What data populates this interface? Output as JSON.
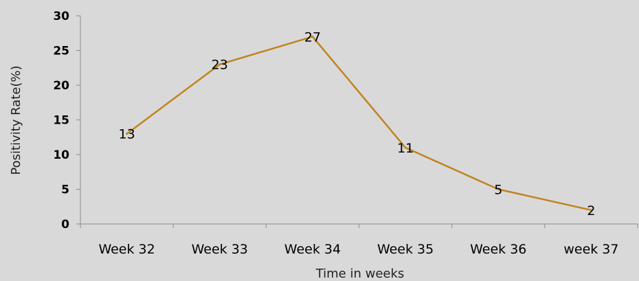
{
  "chart_data": {
    "type": "line",
    "title": "",
    "xlabel": "Time in weeks",
    "ylabel": "Positivity Rate(%)",
    "categories": [
      "Week 32",
      "Week 33",
      "Week 34",
      "Week 35",
      "Week 36",
      "week 37"
    ],
    "series": [
      {
        "values": [
          13,
          23,
          27,
          11,
          5,
          2
        ],
        "color": "#c0841e"
      }
    ],
    "ylim": [
      0,
      30
    ],
    "yticks": [
      0,
      5,
      10,
      15,
      20,
      25,
      30
    ],
    "grid": false,
    "legend": "none",
    "data_labels": true,
    "colors": {
      "background": "#d9d9d9",
      "axis": "#8c8c8c"
    }
  }
}
